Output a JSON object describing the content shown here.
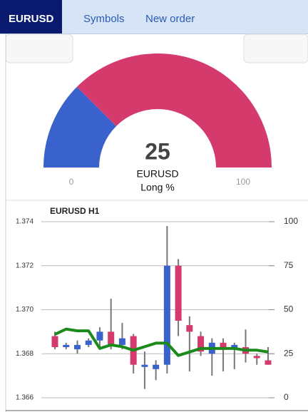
{
  "tabs": [
    "EURUSD",
    "Symbols",
    "New order"
  ],
  "gauge": {
    "value": 25,
    "min": 0,
    "max": 100,
    "label": "EURUSD",
    "sublabel": "Long %"
  },
  "chart_data": {
    "type": "candlestick",
    "title": "EURUSD H1",
    "ylim": [
      1.366,
      1.374
    ],
    "yticks": [
      1.366,
      1.368,
      {
        "value": 1.37,
        "label": "1.370"
      },
      1.372,
      1.374
    ],
    "y2lim": [
      0,
      100
    ],
    "y2ticks": [
      0,
      25,
      50,
      75,
      100
    ],
    "grid": true,
    "up_color": "#3a62cc",
    "down_color": "#d43a6c",
    "open": [
      1.3688,
      1.3683,
      1.3682,
      1.3684,
      1.3686,
      1.369,
      1.3684,
      1.3688,
      1.3674,
      1.3673,
      1.3675,
      1.372,
      1.3693,
      1.3688,
      1.368,
      1.3685,
      1.3682,
      1.3683,
      1.3679,
      1.3677
    ],
    "high": [
      1.369,
      1.3685,
      1.3686,
      1.3687,
      1.3692,
      1.3705,
      1.3694,
      1.3689,
      1.3681,
      1.3677,
      1.3738,
      1.3723,
      1.3697,
      1.369,
      1.3687,
      1.3687,
      1.3685,
      1.3691,
      1.368,
      1.3683
    ],
    "low": [
      1.3682,
      1.3682,
      1.368,
      1.3683,
      1.3683,
      1.3682,
      1.3682,
      1.3671,
      1.3664,
      1.3668,
      1.3671,
      1.3688,
      1.3672,
      1.3679,
      1.367,
      1.3672,
      1.3673,
      1.3676,
      1.3675,
      1.3675
    ],
    "close": [
      1.3683,
      1.3684,
      1.3684,
      1.3686,
      1.369,
      1.3684,
      1.3687,
      1.3675,
      1.3675,
      1.3675,
      1.372,
      1.3695,
      1.369,
      1.3681,
      1.3685,
      1.3682,
      1.3684,
      1.368,
      1.3678,
      1.3675
    ],
    "series": [
      {
        "name": "Long %",
        "color": "#1a8a1a",
        "axis": "y2",
        "values": [
          36,
          39,
          38,
          38,
          28,
          30,
          29,
          27,
          29,
          31,
          31,
          24,
          26,
          28,
          28,
          28,
          28,
          27,
          27,
          26
        ]
      }
    ]
  }
}
